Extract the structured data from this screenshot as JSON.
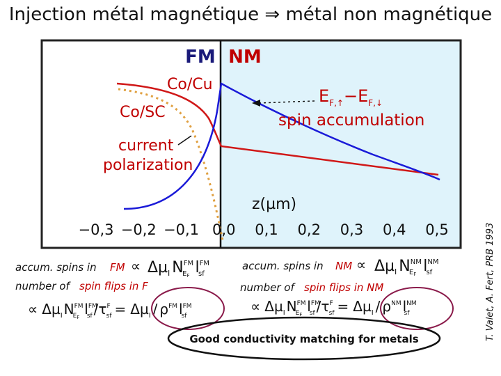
{
  "title": "Injection métal magnétique ⇒ métal non magnétique",
  "chart": {
    "fm_label": "FM",
    "nm_label": "NM",
    "co_cu_label": "Co/Cu",
    "co_sc_label": "Co/SC",
    "current_label": "current",
    "polarization_label": "polarization",
    "ef_label": "E",
    "ef_up_sub": "F,↑",
    "ef_minus": "−E",
    "ef_down_sub": "F,↓",
    "spin_accum_label": "spin accumulation",
    "z_label": "z(µm)",
    "xticks": [
      "−0,3",
      "−0,2",
      "−0,1",
      "0,0",
      "0,1",
      "0,2",
      "0,3",
      "0,4",
      "0,5"
    ],
    "colors": {
      "fm_bg": "#ffffff",
      "nm_bg": "#dff3fb",
      "spin_curve": "#1a1ad8",
      "cocu_curve": "#d01818",
      "cosc_curve": "#e0a040",
      "label_red": "#c00000",
      "label_navy": "#1a1a7a"
    }
  },
  "equations": {
    "fm_accum_text": "accum. spins in",
    "fm_word": "FM",
    "nm_accum_text": "accum. spins in",
    "nm_word": "NM",
    "fm_flips_text": "number of",
    "fm_flips_word": "spin flips in F",
    "nm_flips_text": "number of",
    "nm_flips_word": "spin flips in NM",
    "prop": "∝",
    "delta_mu": "Δµ",
    "mu_sub": "I",
    "N": "N",
    "N_sup_fm": "FM",
    "N_sup_nm": "NM",
    "N_sub": "E",
    "N_subsub": "F",
    "l_char": "l",
    "l_sup_fm": "FM",
    "l_sup_nm": "NM",
    "l_sub": "sf",
    "tau_char": "τ",
    "tau_sup": "F",
    "slash": "/",
    "equals": "=",
    "rho": "ρ",
    "conclusion": "Good conductivity matching for metals"
  },
  "credit": "T. Valet, A. Fert, PRB 1993"
}
